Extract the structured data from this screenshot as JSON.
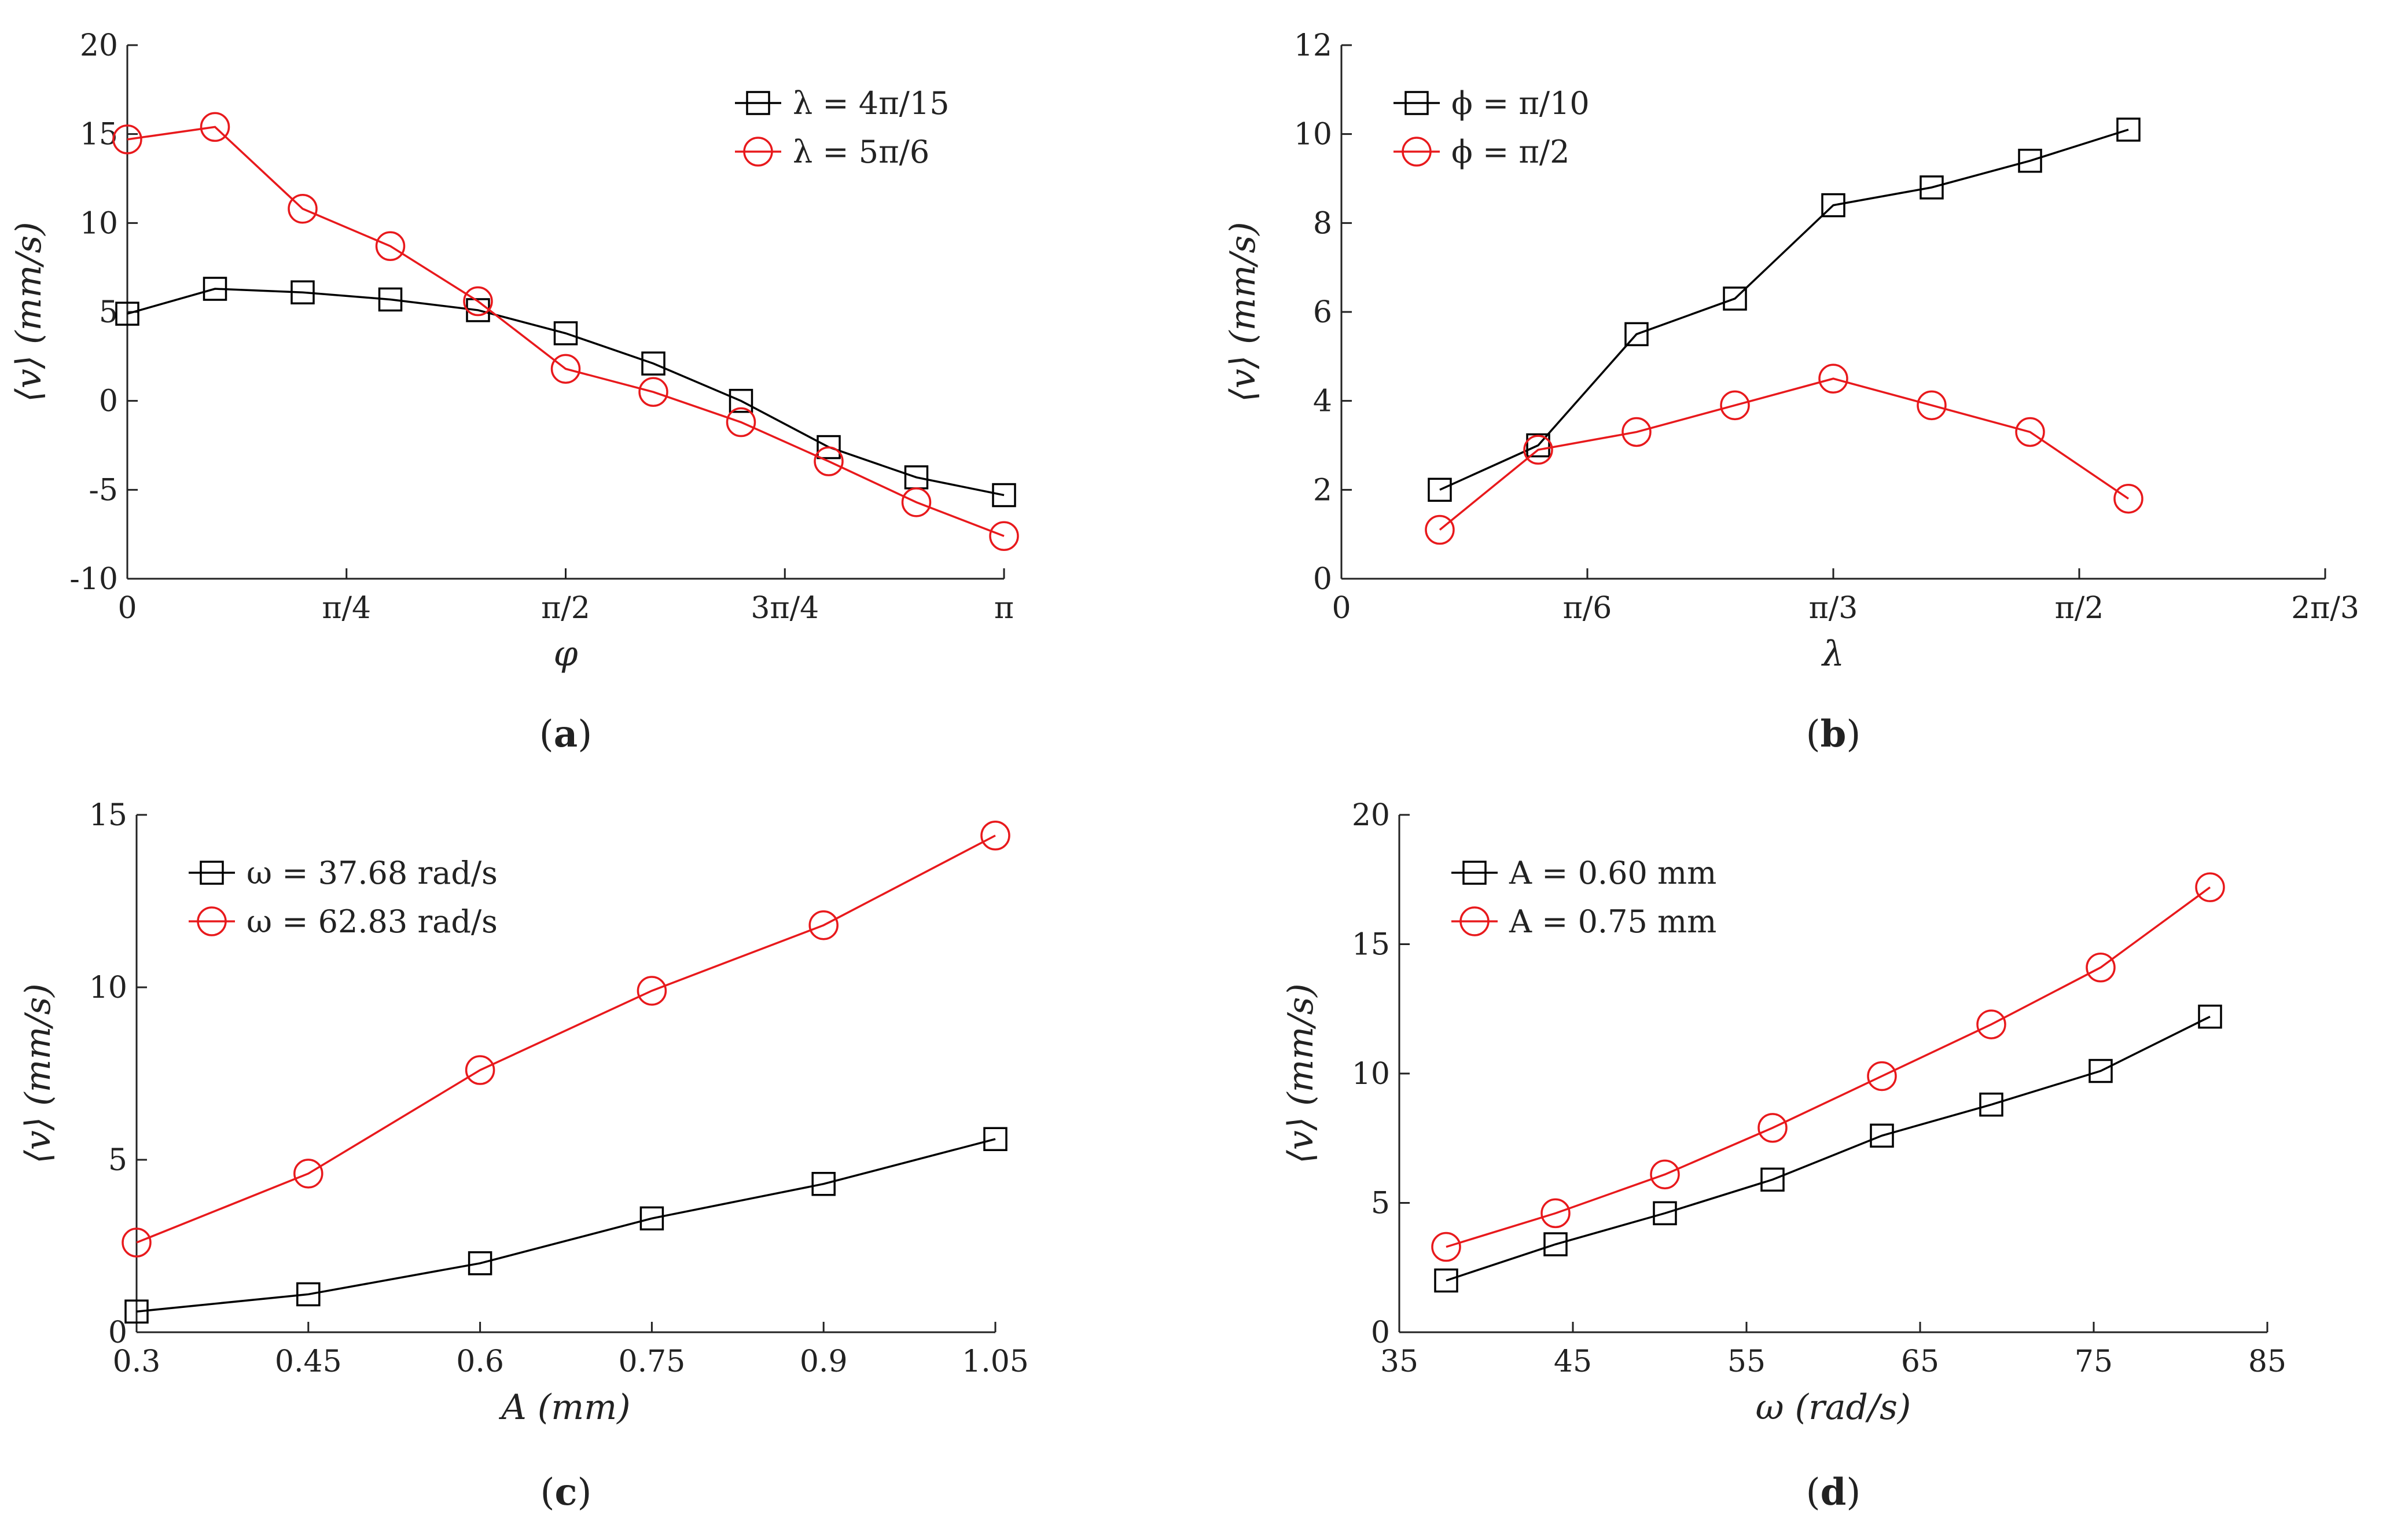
{
  "chart_data": [
    {
      "panel": "a",
      "caption": "(a)",
      "type": "line",
      "xlabel": "φ",
      "ylabel": "⟨v⟩ (mm/s)",
      "xlim": [
        0,
        3.14159
      ],
      "ylim": [
        -10,
        20
      ],
      "xticks": [
        0,
        0.7854,
        1.5708,
        2.3562,
        3.14159
      ],
      "xtick_labels": [
        "0",
        "π/4",
        "π/2",
        "3π/4",
        "π"
      ],
      "yticks": [
        -10,
        -5,
        0,
        5,
        10,
        15,
        20
      ],
      "ytick_labels": [
        "-10",
        "-5",
        "0",
        "5",
        "10",
        "15",
        "20"
      ],
      "legend_position": "top-right",
      "series": [
        {
          "name": "λ = 4π/15",
          "color": "#000000",
          "marker": "square",
          "x": [
            0,
            0.3142,
            0.6283,
            0.9425,
            1.2566,
            1.5708,
            1.885,
            2.1991,
            2.5133,
            2.8274,
            3.1416
          ],
          "y": [
            4.9,
            6.3,
            6.1,
            5.7,
            5.1,
            3.8,
            2.1,
            0.0,
            -2.6,
            -4.3,
            -5.3
          ]
        },
        {
          "name": "λ = 5π/6",
          "color": "#e8191c",
          "marker": "circle",
          "x": [
            0,
            0.3142,
            0.6283,
            0.9425,
            1.2566,
            1.5708,
            1.885,
            2.1991,
            2.5133,
            2.8274,
            3.1416
          ],
          "y": [
            14.7,
            15.4,
            10.8,
            8.7,
            5.6,
            1.8,
            0.5,
            -1.2,
            -3.4,
            -5.7,
            -7.6
          ]
        }
      ]
    },
    {
      "panel": "b",
      "caption": "(b)",
      "type": "line",
      "xlabel": "λ",
      "ylabel": "⟨v⟩ (mm/s)",
      "xlim": [
        0,
        2.0944
      ],
      "ylim": [
        0,
        12
      ],
      "xticks": [
        0,
        0.5236,
        1.0472,
        1.5708,
        2.0944
      ],
      "xtick_labels": [
        "0",
        "π/6",
        "π/3",
        "π/2",
        "2π/3"
      ],
      "yticks": [
        0,
        2,
        4,
        6,
        8,
        10,
        12
      ],
      "ytick_labels": [
        "0",
        "2",
        "4",
        "6",
        "8",
        "10",
        "12"
      ],
      "legend_position": "top-left",
      "series": [
        {
          "name": "ϕ = π/10",
          "color": "#000000",
          "marker": "square",
          "x": [
            0.2094,
            0.4189,
            0.6283,
            0.8378,
            1.0472,
            1.2566,
            1.4661,
            1.6755
          ],
          "y": [
            2.0,
            3.0,
            5.5,
            6.3,
            8.4,
            8.8,
            9.4,
            10.1
          ]
        },
        {
          "name": "ϕ = π/2",
          "color": "#e8191c",
          "marker": "circle",
          "x": [
            0.2094,
            0.4189,
            0.6283,
            0.8378,
            1.0472,
            1.2566,
            1.4661,
            1.6755
          ],
          "y": [
            1.1,
            2.9,
            3.3,
            3.9,
            4.5,
            3.9,
            3.3,
            1.8
          ]
        }
      ]
    },
    {
      "panel": "c",
      "caption": "(c)",
      "type": "line",
      "xlabel": "A (mm)",
      "ylabel": "⟨v⟩ (mm/s)",
      "xlim": [
        0.3,
        1.05
      ],
      "ylim": [
        0,
        15
      ],
      "xticks": [
        0.3,
        0.45,
        0.6,
        0.75,
        0.9,
        1.05
      ],
      "xtick_labels": [
        "0.3",
        "0.45",
        "0.6",
        "0.75",
        "0.9",
        "1.05"
      ],
      "yticks": [
        0,
        5,
        10,
        15
      ],
      "ytick_labels": [
        "0",
        "5",
        "10",
        "15"
      ],
      "legend_position": "top-left",
      "series": [
        {
          "name": "ω = 37.68 rad/s",
          "color": "#000000",
          "marker": "square",
          "x": [
            0.3,
            0.45,
            0.6,
            0.75,
            0.9,
            1.05
          ],
          "y": [
            0.6,
            1.1,
            2.0,
            3.3,
            4.3,
            5.6
          ]
        },
        {
          "name": "ω = 62.83 rad/s",
          "color": "#e8191c",
          "marker": "circle",
          "x": [
            0.3,
            0.45,
            0.6,
            0.75,
            0.9,
            1.05
          ],
          "y": [
            2.6,
            4.6,
            7.6,
            9.9,
            11.8,
            14.4
          ]
        }
      ]
    },
    {
      "panel": "d",
      "caption": "(d)",
      "type": "line",
      "xlabel": "ω (rad/s)",
      "ylabel": "⟨v⟩ (mm/s)",
      "xlim": [
        35,
        85
      ],
      "ylim": [
        0,
        20
      ],
      "xticks": [
        35,
        45,
        55,
        65,
        75,
        85
      ],
      "xtick_labels": [
        "35",
        "45",
        "55",
        "65",
        "75",
        "85"
      ],
      "yticks": [
        0,
        5,
        10,
        15,
        20
      ],
      "ytick_labels": [
        "0",
        "5",
        "10",
        "15",
        "20"
      ],
      "legend_position": "top-left",
      "series": [
        {
          "name": "A = 0.60 mm",
          "color": "#000000",
          "marker": "square",
          "x": [
            37.7,
            44.0,
            50.3,
            56.5,
            62.8,
            69.1,
            75.4,
            81.7
          ],
          "y": [
            2.0,
            3.4,
            4.6,
            5.9,
            7.6,
            8.8,
            10.1,
            12.2
          ]
        },
        {
          "name": "A = 0.75 mm",
          "color": "#e8191c",
          "marker": "circle",
          "x": [
            37.7,
            44.0,
            50.3,
            56.5,
            62.8,
            69.1,
            75.4,
            81.7
          ],
          "y": [
            3.3,
            4.6,
            6.1,
            7.9,
            9.9,
            11.9,
            14.1,
            17.2
          ]
        }
      ]
    }
  ]
}
